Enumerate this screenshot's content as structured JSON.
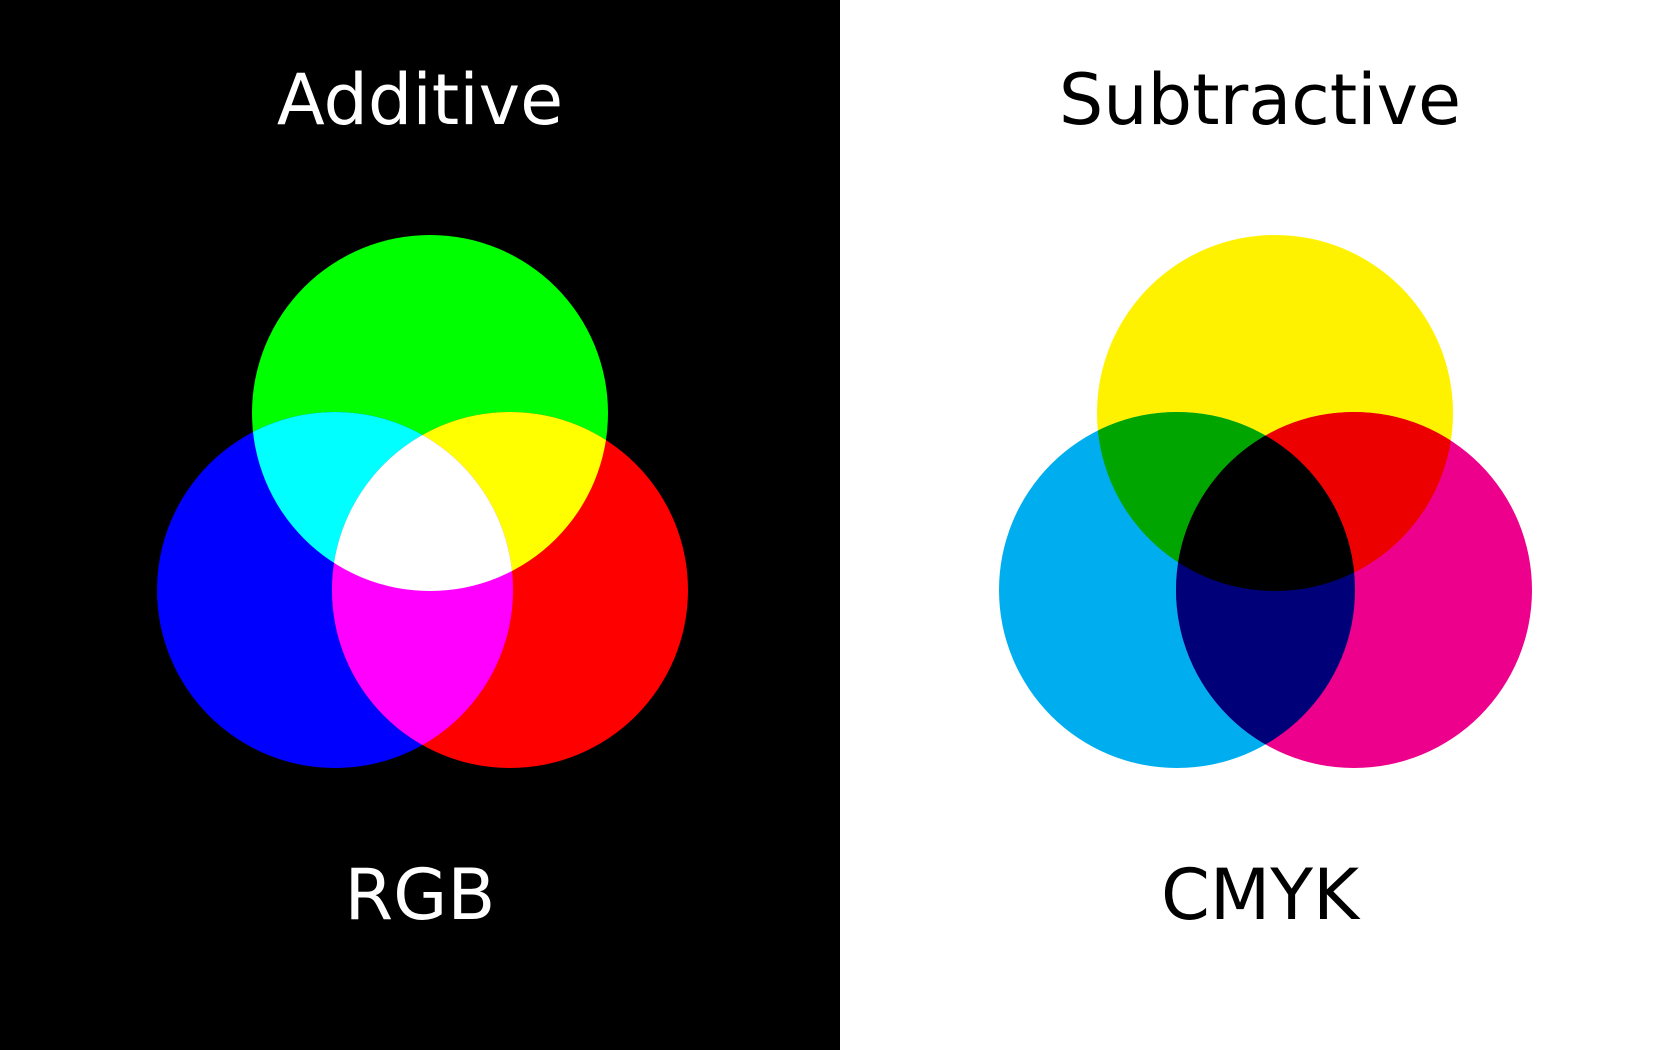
{
  "additive": {
    "title": "Additive",
    "model": "RGB",
    "background": "#000000",
    "text_color": "#ffffff",
    "colors": {
      "green": "#00ff00",
      "blue": "#0000ff",
      "red": "#ff0000",
      "cyan": "#00ffff",
      "yellow": "#ffff00",
      "magenta": "#ff00ff",
      "white": "#ffffff"
    }
  },
  "subtractive": {
    "title": "Subtractive",
    "model": "CMYK",
    "background": "#ffffff",
    "text_color": "#000000",
    "colors": {
      "yellow": "#fff200",
      "cyan": "#00aeef",
      "magenta": "#ec008c",
      "green": "#00a500",
      "red": "#ed0000",
      "blue": "#000078",
      "black": "#000000"
    }
  }
}
